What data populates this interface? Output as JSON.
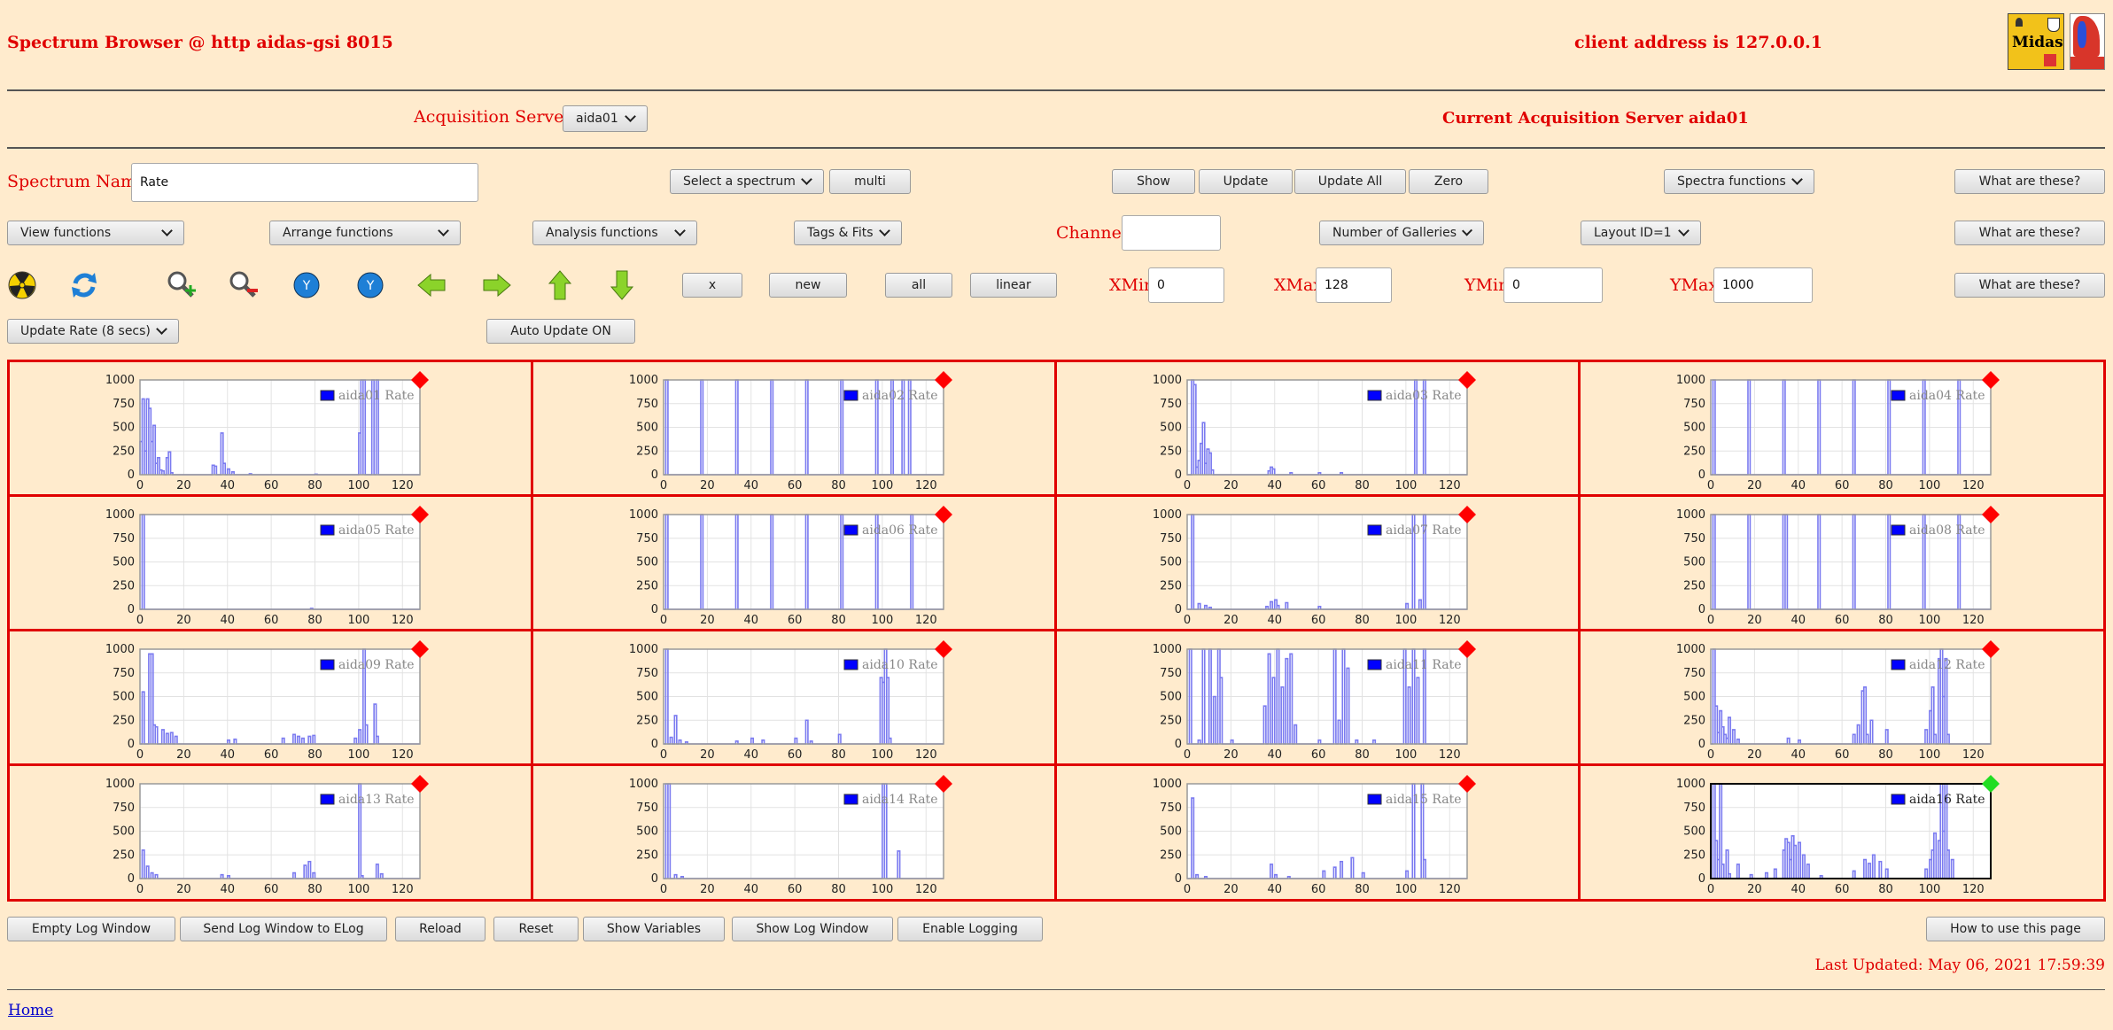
{
  "header": {
    "title": "Spectrum Browser @ http aidas-gsi 8015",
    "client_address": "client address is 127.0.0.1",
    "logo_text": "Midas"
  },
  "acquisition": {
    "label": "Acquisition Servers",
    "selected": "aida01",
    "current": "Current Acquisition Server aida01"
  },
  "row1": {
    "spectrum_name_label": "Spectrum Name:",
    "spectrum_name_value": "Rate",
    "select_spectrum": "Select a spectrum",
    "multi": "multi",
    "show": "Show",
    "update": "Update",
    "update_all": "Update All",
    "zero": "Zero",
    "spectra_functions": "Spectra functions",
    "help": "What are these?"
  },
  "row2": {
    "view_functions": "View functions",
    "arrange_functions": "Arrange functions",
    "analysis_functions": "Analysis functions",
    "tags_fits": "Tags & Fits",
    "channel_label": "Channel:",
    "channel_value": "",
    "galleries": "Number of Galleries",
    "layout": "Layout ID=1",
    "help": "What are these?"
  },
  "row3": {
    "x": "x",
    "new": "new",
    "all": "all",
    "linear": "linear",
    "xmin_label": "XMin",
    "xmin": "0",
    "xmax_label": "XMax",
    "xmax": "128",
    "ymin_label": "YMin",
    "ymin": "0",
    "ymax_label": "YMax",
    "ymax": "1000",
    "help": "What are these?",
    "icons": [
      "radiation-icon",
      "refresh-icon",
      "zoom-in-icon",
      "zoom-out-icon",
      "y-down-icon",
      "y-up-icon",
      "left-arrow-icon",
      "right-arrow-icon",
      "up-arrow-icon",
      "down-arrow-icon"
    ]
  },
  "row4": {
    "update_rate": "Update Rate (8 secs)",
    "auto_update": "Auto Update ON"
  },
  "charts": {
    "ylim": [
      0,
      1000
    ],
    "xlim": [
      0,
      128
    ],
    "yticks": [
      "1000",
      "750",
      "500",
      "250",
      "0"
    ],
    "xticks": [
      "0",
      "20",
      "40",
      "60",
      "80",
      "100",
      "120"
    ],
    "status_colors": {
      "red": "#ff0000",
      "green": "#22dd22"
    },
    "panels": [
      {
        "name": "aida01 Rate",
        "status": "red"
      },
      {
        "name": "aida02 Rate",
        "status": "red"
      },
      {
        "name": "aida03 Rate",
        "status": "red"
      },
      {
        "name": "aida04 Rate",
        "status": "red"
      },
      {
        "name": "aida05 Rate",
        "status": "red"
      },
      {
        "name": "aida06 Rate",
        "status": "red"
      },
      {
        "name": "aida07 Rate",
        "status": "red"
      },
      {
        "name": "aida08 Rate",
        "status": "red"
      },
      {
        "name": "aida09 Rate",
        "status": "red"
      },
      {
        "name": "aida10 Rate",
        "status": "red"
      },
      {
        "name": "aida11 Rate",
        "status": "red"
      },
      {
        "name": "aida12 Rate",
        "status": "red"
      },
      {
        "name": "aida13 Rate",
        "status": "red"
      },
      {
        "name": "aida14 Rate",
        "status": "red"
      },
      {
        "name": "aida15 Rate",
        "status": "red"
      },
      {
        "name": "aida16 Rate",
        "status": "green"
      }
    ]
  },
  "chart_data": {
    "type": "line",
    "xlim": [
      0,
      128
    ],
    "ylim": [
      0,
      1000
    ],
    "series": [
      {
        "name": "aida01 Rate",
        "points": [
          [
            0,
            350
          ],
          [
            1,
            800
          ],
          [
            2,
            250
          ],
          [
            3,
            800
          ],
          [
            4,
            700
          ],
          [
            5,
            350
          ],
          [
            6,
            520
          ],
          [
            7,
            120
          ],
          [
            8,
            180
          ],
          [
            9,
            50
          ],
          [
            10,
            40
          ],
          [
            12,
            180
          ],
          [
            13,
            240
          ],
          [
            14,
            20
          ],
          [
            33,
            100
          ],
          [
            34,
            90
          ],
          [
            37,
            440
          ],
          [
            38,
            120
          ],
          [
            40,
            60
          ],
          [
            42,
            30
          ],
          [
            50,
            10
          ],
          [
            80,
            5
          ],
          [
            100,
            440
          ],
          [
            101,
            1000
          ],
          [
            102,
            1000
          ],
          [
            106,
            1000
          ],
          [
            108,
            1000
          ]
        ]
      },
      {
        "name": "aida02 Rate",
        "points": [
          [
            1,
            1000
          ],
          [
            17,
            1000
          ],
          [
            33,
            1000
          ],
          [
            49,
            1000
          ],
          [
            65,
            1000
          ],
          [
            81,
            1000
          ],
          [
            97,
            1000
          ],
          [
            104,
            1000
          ],
          [
            109,
            1000
          ],
          [
            112,
            1000
          ]
        ]
      },
      {
        "name": "aida03 Rate",
        "points": [
          [
            2,
            1000
          ],
          [
            3,
            950
          ],
          [
            4,
            80
          ],
          [
            5,
            150
          ],
          [
            6,
            330
          ],
          [
            7,
            550
          ],
          [
            8,
            120
          ],
          [
            9,
            270
          ],
          [
            10,
            230
          ],
          [
            11,
            50
          ],
          [
            37,
            40
          ],
          [
            38,
            80
          ],
          [
            39,
            60
          ],
          [
            47,
            20
          ],
          [
            60,
            20
          ],
          [
            70,
            20
          ],
          [
            104,
            1000
          ],
          [
            108,
            1000
          ]
        ]
      },
      {
        "name": "aida04 Rate",
        "points": [
          [
            1,
            1000
          ],
          [
            17,
            1000
          ],
          [
            33,
            1000
          ],
          [
            49,
            1000
          ],
          [
            65,
            1000
          ],
          [
            81,
            1000
          ],
          [
            97,
            1000
          ],
          [
            113,
            1000
          ]
        ]
      },
      {
        "name": "aida05 Rate",
        "points": [
          [
            1,
            1000
          ],
          [
            78,
            10
          ]
        ]
      },
      {
        "name": "aida06 Rate",
        "points": [
          [
            1,
            1000
          ],
          [
            17,
            1000
          ],
          [
            33,
            1000
          ],
          [
            49,
            1000
          ],
          [
            65,
            1000
          ],
          [
            81,
            1000
          ],
          [
            97,
            1000
          ],
          [
            113,
            1000
          ]
        ]
      },
      {
        "name": "aida07 Rate",
        "points": [
          [
            2,
            1000
          ],
          [
            5,
            60
          ],
          [
            8,
            40
          ],
          [
            10,
            20
          ],
          [
            36,
            30
          ],
          [
            38,
            80
          ],
          [
            40,
            100
          ],
          [
            41,
            40
          ],
          [
            45,
            70
          ],
          [
            60,
            30
          ],
          [
            100,
            60
          ],
          [
            103,
            1000
          ],
          [
            106,
            100
          ],
          [
            108,
            1000
          ]
        ]
      },
      {
        "name": "aida08 Rate",
        "points": [
          [
            1,
            1000
          ],
          [
            17,
            1000
          ],
          [
            33,
            1000
          ],
          [
            34,
            1000
          ],
          [
            49,
            1000
          ],
          [
            65,
            1000
          ],
          [
            81,
            1000
          ],
          [
            97,
            1000
          ],
          [
            113,
            1000
          ]
        ]
      },
      {
        "name": "aida09 Rate",
        "points": [
          [
            1,
            550
          ],
          [
            4,
            950
          ],
          [
            5,
            950
          ],
          [
            6,
            200
          ],
          [
            7,
            180
          ],
          [
            10,
            150
          ],
          [
            12,
            110
          ],
          [
            14,
            120
          ],
          [
            16,
            80
          ],
          [
            40,
            40
          ],
          [
            43,
            50
          ],
          [
            65,
            60
          ],
          [
            70,
            100
          ],
          [
            72,
            80
          ],
          [
            74,
            60
          ],
          [
            77,
            80
          ],
          [
            79,
            90
          ],
          [
            98,
            60
          ],
          [
            100,
            150
          ],
          [
            102,
            1000
          ],
          [
            103,
            200
          ],
          [
            107,
            420
          ],
          [
            108,
            80
          ]
        ]
      },
      {
        "name": "aida10 Rate",
        "points": [
          [
            1,
            1000
          ],
          [
            3,
            70
          ],
          [
            5,
            300
          ],
          [
            7,
            40
          ],
          [
            10,
            20
          ],
          [
            33,
            30
          ],
          [
            40,
            60
          ],
          [
            45,
            40
          ],
          [
            60,
            60
          ],
          [
            65,
            250
          ],
          [
            67,
            30
          ],
          [
            80,
            100
          ],
          [
            99,
            700
          ],
          [
            100,
            650
          ],
          [
            101,
            1000
          ],
          [
            102,
            700
          ],
          [
            103,
            60
          ]
        ]
      },
      {
        "name": "aida11 Rate",
        "points": [
          [
            1,
            1000
          ],
          [
            5,
            40
          ],
          [
            7,
            1000
          ],
          [
            10,
            1000
          ],
          [
            12,
            500
          ],
          [
            14,
            1000
          ],
          [
            15,
            700
          ],
          [
            20,
            40
          ],
          [
            35,
            400
          ],
          [
            37,
            950
          ],
          [
            39,
            700
          ],
          [
            41,
            1000
          ],
          [
            43,
            600
          ],
          [
            45,
            900
          ],
          [
            47,
            950
          ],
          [
            49,
            200
          ],
          [
            60,
            40
          ],
          [
            67,
            1000
          ],
          [
            69,
            250
          ],
          [
            71,
            1000
          ],
          [
            73,
            800
          ],
          [
            77,
            40
          ],
          [
            85,
            40
          ],
          [
            99,
            1000
          ],
          [
            101,
            600
          ],
          [
            103,
            1000
          ],
          [
            105,
            700
          ],
          [
            108,
            1000
          ]
        ]
      },
      {
        "name": "aida12 Rate",
        "points": [
          [
            1,
            1000
          ],
          [
            2,
            400
          ],
          [
            3,
            120
          ],
          [
            4,
            350
          ],
          [
            5,
            180
          ],
          [
            6,
            100
          ],
          [
            7,
            60
          ],
          [
            8,
            280
          ],
          [
            10,
            150
          ],
          [
            12,
            50
          ],
          [
            35,
            60
          ],
          [
            40,
            40
          ],
          [
            65,
            100
          ],
          [
            67,
            200
          ],
          [
            69,
            560
          ],
          [
            70,
            600
          ],
          [
            71,
            100
          ],
          [
            73,
            250
          ],
          [
            80,
            150
          ],
          [
            98,
            150
          ],
          [
            100,
            350
          ],
          [
            101,
            600
          ],
          [
            102,
            100
          ],
          [
            104,
            900
          ],
          [
            105,
            1000
          ],
          [
            106,
            500
          ],
          [
            107,
            900
          ],
          [
            108,
            100
          ]
        ]
      },
      {
        "name": "aida13 Rate",
        "points": [
          [
            1,
            300
          ],
          [
            3,
            130
          ],
          [
            5,
            60
          ],
          [
            7,
            40
          ],
          [
            37,
            40
          ],
          [
            40,
            30
          ],
          [
            70,
            60
          ],
          [
            75,
            140
          ],
          [
            77,
            180
          ],
          [
            79,
            60
          ],
          [
            100,
            1000
          ],
          [
            101,
            30
          ],
          [
            108,
            150
          ],
          [
            110,
            50
          ]
        ]
      },
      {
        "name": "aida14 Rate",
        "points": [
          [
            1,
            1000
          ],
          [
            2,
            1000
          ],
          [
            5,
            40
          ],
          [
            8,
            20
          ],
          [
            100,
            1000
          ],
          [
            101,
            1000
          ],
          [
            107,
            290
          ]
        ]
      },
      {
        "name": "aida15 Rate",
        "points": [
          [
            2,
            850
          ],
          [
            4,
            40
          ],
          [
            8,
            20
          ],
          [
            38,
            150
          ],
          [
            40,
            40
          ],
          [
            46,
            20
          ],
          [
            62,
            80
          ],
          [
            67,
            120
          ],
          [
            70,
            180
          ],
          [
            75,
            220
          ],
          [
            80,
            60
          ],
          [
            100,
            80
          ],
          [
            103,
            1000
          ],
          [
            107,
            1000
          ],
          [
            108,
            200
          ]
        ]
      },
      {
        "name": "aida16 Rate",
        "points": [
          [
            1,
            1000
          ],
          [
            2,
            400
          ],
          [
            3,
            200
          ],
          [
            4,
            1000
          ],
          [
            5,
            150
          ],
          [
            7,
            300
          ],
          [
            8,
            50
          ],
          [
            12,
            150
          ],
          [
            18,
            40
          ],
          [
            25,
            60
          ],
          [
            29,
            100
          ],
          [
            33,
            300
          ],
          [
            34,
            420
          ],
          [
            35,
            380
          ],
          [
            36,
            200
          ],
          [
            37,
            450
          ],
          [
            38,
            350
          ],
          [
            40,
            380
          ],
          [
            42,
            250
          ],
          [
            44,
            150
          ],
          [
            50,
            30
          ],
          [
            65,
            80
          ],
          [
            70,
            200
          ],
          [
            72,
            160
          ],
          [
            74,
            250
          ],
          [
            77,
            180
          ],
          [
            80,
            100
          ],
          [
            98,
            100
          ],
          [
            100,
            200
          ],
          [
            101,
            300
          ],
          [
            102,
            480
          ],
          [
            104,
            400
          ],
          [
            105,
            1000
          ],
          [
            106,
            500
          ],
          [
            107,
            1000
          ],
          [
            108,
            300
          ],
          [
            110,
            200
          ]
        ]
      }
    ]
  },
  "footer": {
    "buttons": [
      "Empty Log Window",
      "Send Log Window to ELog",
      "Reload",
      "Reset",
      "Show Variables",
      "Show Log Window",
      "Enable Logging"
    ],
    "help": "How to use this page",
    "last_updated": "Last Updated: May 06, 2021 17:59:39",
    "home": "Home"
  }
}
